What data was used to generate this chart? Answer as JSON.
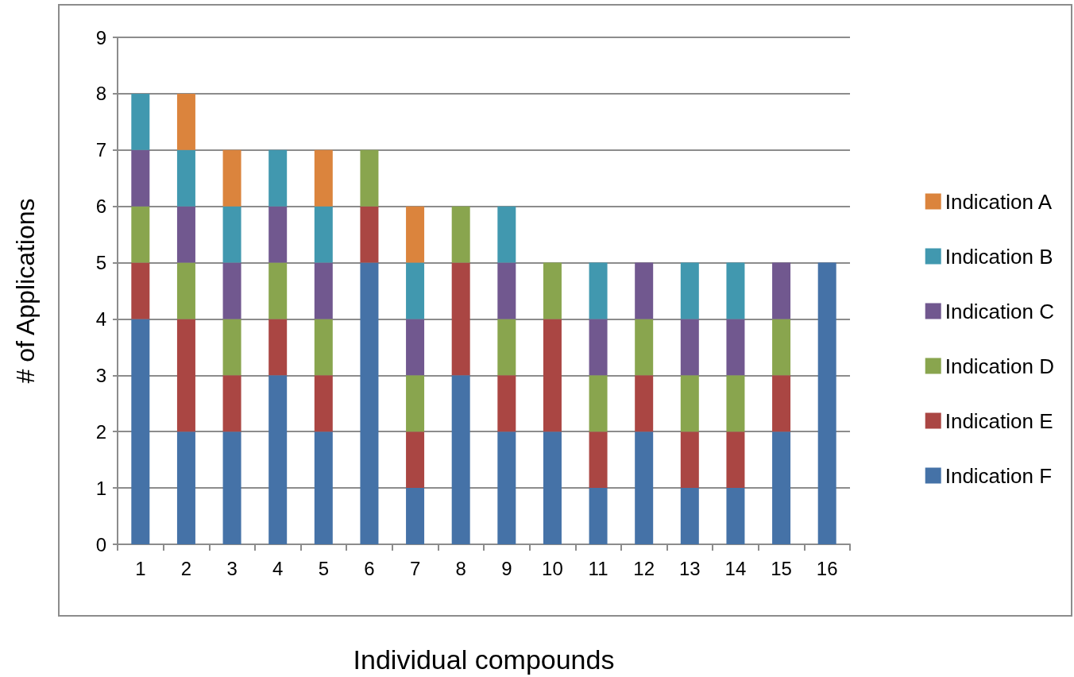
{
  "chart_data": {
    "type": "bar",
    "stacked": true,
    "xlabel": "Individual compounds",
    "ylabel": "# of Applications",
    "categories": [
      "1",
      "2",
      "3",
      "4",
      "5",
      "6",
      "7",
      "8",
      "9",
      "10",
      "11",
      "12",
      "13",
      "14",
      "15",
      "16"
    ],
    "series": [
      {
        "name": "Indication F",
        "color": "#4572a7",
        "values": [
          4,
          2,
          2,
          3,
          2,
          5,
          1,
          3,
          2,
          2,
          1,
          2,
          1,
          1,
          2,
          5
        ]
      },
      {
        "name": "Indication E",
        "color": "#aa4643",
        "values": [
          1,
          2,
          1,
          1,
          1,
          1,
          1,
          2,
          1,
          2,
          1,
          1,
          1,
          1,
          1,
          null
        ]
      },
      {
        "name": "Indication D",
        "color": "#89a54e",
        "values": [
          1,
          1,
          1,
          1,
          1,
          1,
          1,
          1,
          1,
          1,
          1,
          1,
          1,
          1,
          1,
          null
        ]
      },
      {
        "name": "Indication C",
        "color": "#71588f",
        "values": [
          1,
          1,
          1,
          1,
          1,
          null,
          1,
          null,
          1,
          null,
          1,
          1,
          1,
          1,
          1,
          null
        ]
      },
      {
        "name": "Indication B",
        "color": "#4198af",
        "values": [
          1,
          1,
          1,
          1,
          1,
          null,
          1,
          null,
          1,
          null,
          1,
          null,
          1,
          1,
          null,
          null
        ]
      },
      {
        "name": "Indication A",
        "color": "#db843d",
        "values": [
          null,
          1,
          1,
          null,
          1,
          null,
          1,
          null,
          null,
          null,
          null,
          null,
          null,
          null,
          null,
          null
        ]
      }
    ],
    "ylim": [
      0,
      9
    ],
    "yticks": [
      0,
      1,
      2,
      3,
      4,
      5,
      6,
      7,
      8,
      9
    ],
    "grid": "y",
    "legend": "right"
  }
}
